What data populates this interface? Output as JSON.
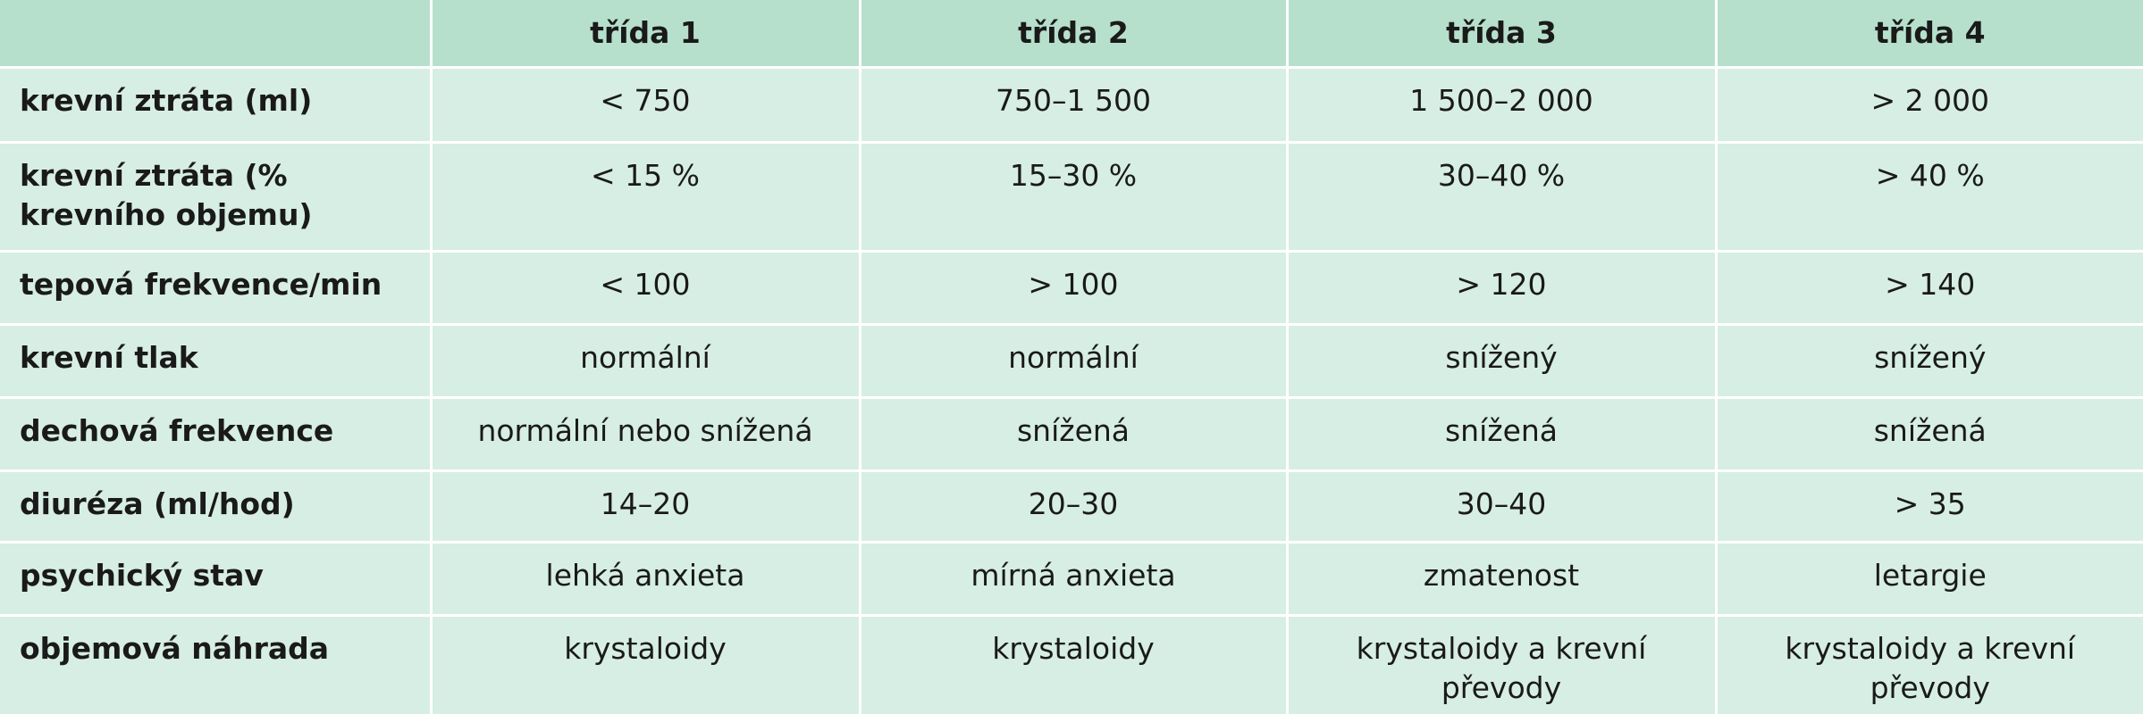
{
  "header": {
    "corner": "",
    "columns": [
      "třída 1",
      "třída 2",
      "třída 3",
      "třída 4"
    ]
  },
  "rows": [
    {
      "label": "krevní ztráta (ml)",
      "values": [
        "< 750",
        "750–1 500",
        "1 500–2 000",
        "> 2 000"
      ]
    },
    {
      "label": "krevní ztráta (% krevního objemu)",
      "values": [
        "< 15 %",
        "15–30 %",
        "30–40 %",
        "> 40 %"
      ]
    },
    {
      "label": "tepová frekvence/min",
      "values": [
        "< 100",
        "> 100",
        "> 120",
        "> 140"
      ]
    },
    {
      "label": "krevní tlak",
      "values": [
        "normální",
        "normální",
        "snížený",
        "snížený"
      ]
    },
    {
      "label": "dechová frekvence",
      "values": [
        "normální nebo snížená",
        "snížená",
        "snížená",
        "snížená"
      ]
    },
    {
      "label": "diuréza (ml/hod)",
      "values": [
        "14–20",
        "20–30",
        "30–40",
        "> 35"
      ]
    },
    {
      "label": "psychický stav",
      "values": [
        "lehká anxieta",
        "mírná anxieta",
        "zmatenost",
        "letargie"
      ]
    },
    {
      "label": "objemová náhrada",
      "values": [
        "krystaloidy",
        "krystaloidy",
        "krystaloidy a krevní převody",
        "krystaloidy a krevní převody"
      ]
    }
  ],
  "colors": {
    "header_bg": "#b6e0cc",
    "body_bg": "#d7eee4",
    "grid_line": "#ffffff",
    "text": "#1a1a1a"
  }
}
